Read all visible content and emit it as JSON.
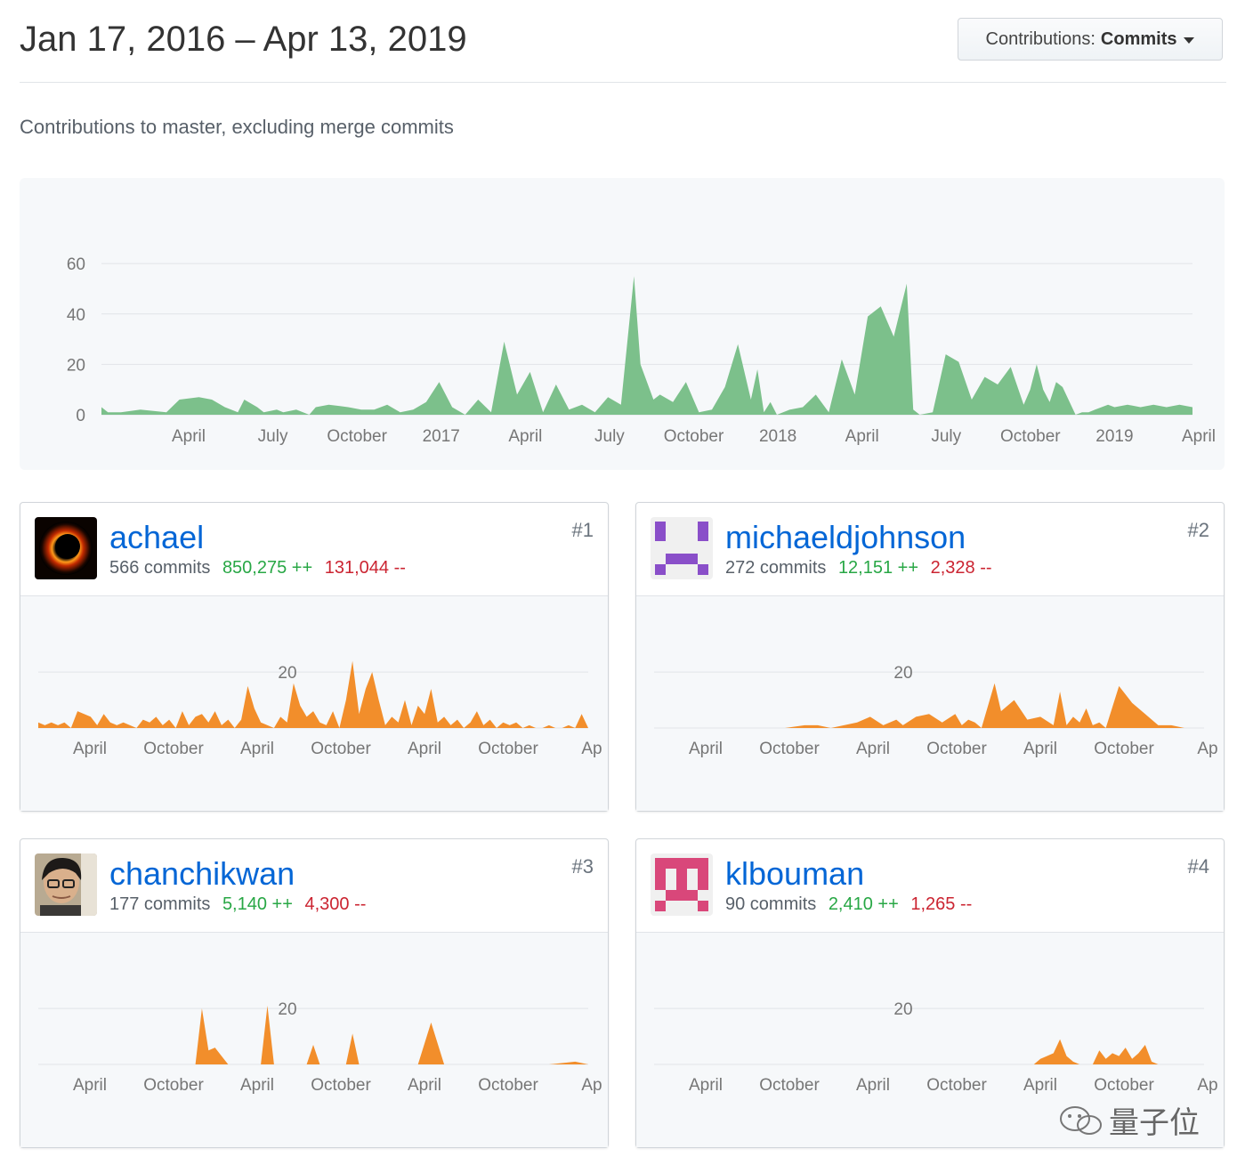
{
  "header": {
    "date_range": "Jan 17, 2016 – Apr 13, 2019",
    "dropdown_prefix": "Contributions:",
    "dropdown_value": "Commits"
  },
  "subtitle": "Contributions to master, excluding merge commits",
  "colors": {
    "main_area": "#7cc08b",
    "user_area": "#f28e2b",
    "link": "#0366d6",
    "additions": "#28a745",
    "deletions": "#cb2431"
  },
  "chart_data": [
    {
      "type": "area",
      "title": "Contributions to master, excluding merge commits",
      "ylim": [
        0,
        65
      ],
      "yticks": [
        "0",
        "20",
        "40",
        "60"
      ],
      "xticks": [
        "April",
        "July",
        "October",
        "2017",
        "April",
        "July",
        "October",
        "2018",
        "April",
        "July",
        "October",
        "2019",
        "April"
      ],
      "xlim": [
        0,
        168
      ],
      "series": [
        {
          "name": "commits per week",
          "x": [
            0,
            1,
            3,
            6,
            10,
            12,
            15,
            17,
            19,
            21,
            22,
            24,
            25,
            27,
            28,
            30,
            32,
            33,
            35,
            38,
            40,
            42,
            44,
            46,
            48,
            50,
            52,
            54,
            56,
            58,
            60,
            62,
            64,
            66,
            68,
            70,
            72,
            74,
            76,
            78,
            80,
            82,
            83,
            85,
            86,
            88,
            90,
            92,
            94,
            96,
            98,
            100,
            101,
            102,
            103,
            104,
            106,
            108,
            110,
            112,
            114,
            116,
            118,
            120,
            122,
            124,
            125,
            126,
            128,
            130,
            132,
            134,
            136,
            138,
            140,
            142,
            143,
            144,
            145,
            146,
            147,
            148,
            150,
            151,
            152,
            153,
            154,
            155,
            156,
            158,
            160,
            162,
            164,
            166,
            168
          ],
          "values": [
            3,
            1,
            1,
            2,
            1,
            6,
            7,
            6,
            3,
            1,
            6,
            3,
            1,
            2,
            1,
            2,
            0,
            3,
            4,
            3,
            2,
            2,
            4,
            1,
            2,
            5,
            13,
            3,
            0,
            6,
            1,
            29,
            8,
            17,
            1,
            12,
            2,
            4,
            1,
            7,
            4,
            55,
            20,
            6,
            8,
            5,
            13,
            1,
            2,
            11,
            28,
            6,
            18,
            1,
            5,
            0,
            2,
            3,
            8,
            1,
            22,
            8,
            39,
            43,
            31,
            52,
            2,
            0,
            1,
            24,
            21,
            6,
            15,
            12,
            19,
            4,
            10,
            20,
            10,
            5,
            13,
            11,
            0,
            1,
            1,
            2,
            3,
            4,
            3,
            4,
            3,
            4,
            3,
            4,
            3
          ]
        }
      ]
    },
    {
      "type": "area",
      "user": "achael",
      "ylim": [
        0,
        28
      ],
      "yticks": [
        "20"
      ],
      "xticks": [
        "April",
        "October",
        "April",
        "October",
        "April",
        "October",
        "Ap"
      ],
      "x": [
        0,
        2,
        4,
        6,
        8,
        10,
        12,
        14,
        16,
        18,
        20,
        22,
        24,
        26,
        28,
        30,
        32,
        34,
        36,
        38,
        40,
        42,
        44,
        46,
        48,
        50,
        52,
        54,
        56,
        58,
        60,
        62,
        64,
        66,
        68,
        70,
        72,
        74,
        76,
        78,
        80,
        82,
        84,
        86,
        88,
        90,
        92,
        94,
        96,
        98,
        100,
        102,
        104,
        106,
        108,
        110,
        112,
        114,
        116,
        118,
        120,
        122,
        124,
        126,
        128,
        130,
        132,
        134,
        136,
        138,
        140,
        142,
        144,
        146,
        148,
        150,
        152,
        154,
        156,
        158,
        160,
        162,
        164,
        166,
        168
      ],
      "values": [
        2,
        1,
        2,
        1,
        2,
        0,
        6,
        5,
        4,
        1,
        5,
        2,
        1,
        2,
        1,
        0,
        3,
        2,
        4,
        1,
        3,
        0,
        6,
        1,
        4,
        5,
        2,
        6,
        1,
        3,
        0,
        3,
        15,
        7,
        2,
        1,
        0,
        4,
        2,
        16,
        8,
        4,
        6,
        2,
        1,
        6,
        0,
        10,
        24,
        5,
        14,
        20,
        10,
        1,
        4,
        2,
        10,
        1,
        8,
        5,
        14,
        2,
        4,
        1,
        3,
        0,
        2,
        6,
        1,
        3,
        0,
        2,
        1,
        2,
        0,
        1,
        0,
        0,
        1,
        0,
        0,
        1,
        0,
        5,
        0
      ],
      "xscale": 168
    },
    {
      "type": "area",
      "user": "michaeldjohnson",
      "ylim": [
        0,
        28
      ],
      "yticks": [
        "20"
      ],
      "xticks": [
        "April",
        "October",
        "April",
        "October",
        "April",
        "October",
        "Ap"
      ],
      "x": [
        0,
        10,
        20,
        30,
        40,
        46,
        50,
        54,
        58,
        62,
        66,
        70,
        74,
        76,
        80,
        84,
        88,
        92,
        94,
        96,
        98,
        100,
        104,
        106,
        110,
        114,
        118,
        122,
        124,
        126,
        128,
        130,
        132,
        134,
        136,
        138,
        142,
        146,
        150,
        154,
        158,
        162,
        168
      ],
      "values": [
        0,
        0,
        0,
        0,
        0,
        1,
        1,
        0,
        1,
        2,
        4,
        1,
        3,
        1,
        4,
        5,
        2,
        5,
        1,
        3,
        2,
        0,
        16,
        6,
        10,
        3,
        4,
        1,
        13,
        1,
        4,
        2,
        7,
        1,
        2,
        0,
        15,
        9,
        5,
        1,
        1,
        0,
        0
      ],
      "xscale": 168
    },
    {
      "type": "area",
      "user": "chanchikwan",
      "ylim": [
        0,
        28
      ],
      "yticks": [
        "20"
      ],
      "xticks": [
        "April",
        "October",
        "April",
        "October",
        "April",
        "October",
        "Ap"
      ],
      "x": [
        0,
        40,
        48,
        50,
        52,
        54,
        56,
        58,
        60,
        62,
        64,
        66,
        68,
        70,
        72,
        74,
        76,
        78,
        80,
        82,
        84,
        86,
        88,
        90,
        94,
        96,
        98,
        100,
        102,
        104,
        106,
        108,
        110,
        112,
        114,
        116,
        120,
        124,
        128,
        132,
        140,
        148,
        156,
        164,
        168
      ],
      "values": [
        0,
        0,
        0,
        20,
        5,
        6,
        3,
        0,
        0,
        0,
        0,
        0,
        0,
        21,
        0,
        0,
        0,
        0,
        0,
        0,
        7,
        0,
        0,
        0,
        0,
        11,
        0,
        0,
        0,
        0,
        0,
        0,
        0,
        0,
        0,
        0,
        15,
        0,
        0,
        0,
        0,
        0,
        0,
        1,
        0
      ],
      "xscale": 168
    },
    {
      "type": "area",
      "user": "klbouman",
      "ylim": [
        0,
        28
      ],
      "yticks": [
        "20"
      ],
      "xticks": [
        "April",
        "October",
        "April",
        "October",
        "April",
        "October",
        "Ap"
      ],
      "x": [
        0,
        40,
        80,
        110,
        116,
        118,
        120,
        122,
        124,
        126,
        128,
        130,
        132,
        134,
        136,
        138,
        140,
        142,
        144,
        146,
        148,
        150,
        152,
        154,
        156,
        160,
        168
      ],
      "values": [
        0,
        0,
        0,
        0,
        0,
        2,
        3,
        4,
        9,
        3,
        1,
        0,
        0,
        0,
        5,
        2,
        4,
        3,
        6,
        2,
        4,
        7,
        1,
        0,
        0,
        0,
        0
      ],
      "xscale": 168
    }
  ],
  "contributors": [
    {
      "name": "achael",
      "commits": "566 commits",
      "additions": "850,275 ++",
      "deletions": "131,044 --",
      "rank": "#1",
      "avatar_icon": "black-hole-avatar-icon"
    },
    {
      "name": "michaeldjohnson",
      "commits": "272 commits",
      "additions": "12,151 ++",
      "deletions": "2,328 --",
      "rank": "#2",
      "avatar_icon": "identicon-purple-icon"
    },
    {
      "name": "chanchikwan",
      "commits": "177 commits",
      "additions": "5,140 ++",
      "deletions": "4,300 --",
      "rank": "#3",
      "avatar_icon": "person-photo-avatar-icon"
    },
    {
      "name": "klbouman",
      "commits": "90 commits",
      "additions": "2,410 ++",
      "deletions": "1,265 --",
      "rank": "#4",
      "avatar_icon": "identicon-pink-icon"
    }
  ],
  "watermark": "量子位"
}
